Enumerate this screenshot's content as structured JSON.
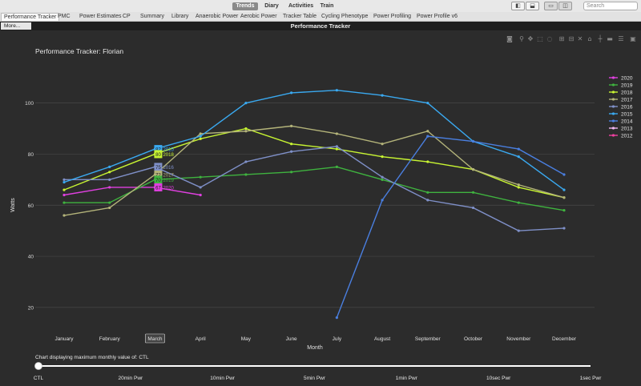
{
  "topbar": {
    "modes": [
      "Trends",
      "Diary",
      "Activities",
      "Train"
    ],
    "active_mode": "Trends",
    "window_buttons": [
      "sidebar-left-icon",
      "bottom-panel-icon",
      "tile-view-icon",
      "split-view-icon"
    ],
    "search_placeholder": "Search"
  },
  "chart_tabs": [
    "Performance Tracker",
    "PMC",
    "Power Estimates",
    "CP",
    "Summary",
    "Library",
    "Anaerobic Power",
    "Aerobic Power",
    "Tracker Table",
    "Cycling Phenotype",
    "Power Profiling",
    "Power Profile v6"
  ],
  "active_chart_tab": "Performance Tracker",
  "more_label": "More...",
  "window_title": "Performance Tracker",
  "plot_toolbar": [
    "camera-icon",
    "zoom-icon",
    "pan-icon",
    "box-select-icon",
    "lasso-icon",
    "zoom-in-icon",
    "zoom-out-icon",
    "autoscale-icon",
    "reset-axes-icon",
    "spike-lines-icon",
    "hover-closest-icon",
    "hover-compare-icon",
    "plotly-logo-icon"
  ],
  "slider": {
    "caption": "Chart displaying maximum monthly value of: CTL",
    "stops": [
      "CTL",
      "20min Pwr",
      "10min Pwr",
      "5min Pwr",
      "1min Pwr",
      "10sec Pwr",
      "1sec Pwr"
    ],
    "value": "CTL"
  },
  "chart_data": {
    "type": "line",
    "title": "Performance Tracker: Florian",
    "xlabel": "Month",
    "ylabel": "Watts",
    "categories": [
      "January",
      "February",
      "March",
      "April",
      "May",
      "June",
      "July",
      "August",
      "September",
      "October",
      "November",
      "December"
    ],
    "yticks": [
      20,
      40,
      60,
      80,
      100
    ],
    "ylim": [
      14,
      114
    ],
    "grid": true,
    "legend_position": "right",
    "hover_month": "March",
    "series": [
      {
        "name": "2020",
        "color": "#e040e0",
        "values": [
          64,
          67,
          67,
          64,
          null,
          null,
          null,
          null,
          null,
          null,
          null,
          null
        ]
      },
      {
        "name": "2019",
        "color": "#3fb33f",
        "values": [
          61,
          61,
          70,
          71,
          72,
          73,
          75,
          70,
          65,
          65,
          61,
          58
        ]
      },
      {
        "name": "2018",
        "color": "#c8f532",
        "values": [
          66,
          73,
          80,
          86,
          90,
          84,
          82,
          79,
          77,
          74,
          67,
          63
        ]
      },
      {
        "name": "2017",
        "color": "#b4b47a",
        "values": [
          56,
          59,
          72,
          88,
          89,
          91,
          88,
          84,
          89,
          74,
          68,
          63
        ]
      },
      {
        "name": "2016",
        "color": "#7f90c8",
        "values": [
          70,
          70,
          75,
          67,
          77,
          81,
          83,
          71,
          62,
          59,
          50,
          51
        ]
      },
      {
        "name": "2015",
        "color": "#3aa9f0",
        "values": [
          69,
          75,
          82,
          87,
          100,
          104,
          105,
          103,
          100,
          85,
          79,
          66
        ]
      },
      {
        "name": "2014",
        "color": "#4a7fe0",
        "values": [
          null,
          null,
          null,
          null,
          null,
          null,
          16,
          62,
          87,
          85,
          82,
          72
        ]
      },
      {
        "name": "2013",
        "color": "#f2b5f2",
        "values": [
          null,
          null,
          null,
          null,
          null,
          null,
          null,
          null,
          null,
          null,
          null,
          null
        ]
      },
      {
        "name": "2012",
        "color": "#f040a0",
        "values": [
          null,
          null,
          null,
          null,
          null,
          null,
          null,
          null,
          null,
          null,
          null,
          null
        ]
      }
    ],
    "hover_labels": [
      {
        "year": "2015",
        "value": "82",
        "color": "#3aa9f0"
      },
      {
        "year": "2018",
        "value": "80",
        "color": "#c8f532"
      },
      {
        "year": "2016",
        "value": "75",
        "color": "#7f90c8"
      },
      {
        "year": "2017",
        "value": "72",
        "color": "#b4b47a"
      },
      {
        "year": "2019",
        "value": "70",
        "color": "#3fb33f"
      },
      {
        "year": "2020",
        "value": "67",
        "color": "#e040e0"
      }
    ]
  }
}
